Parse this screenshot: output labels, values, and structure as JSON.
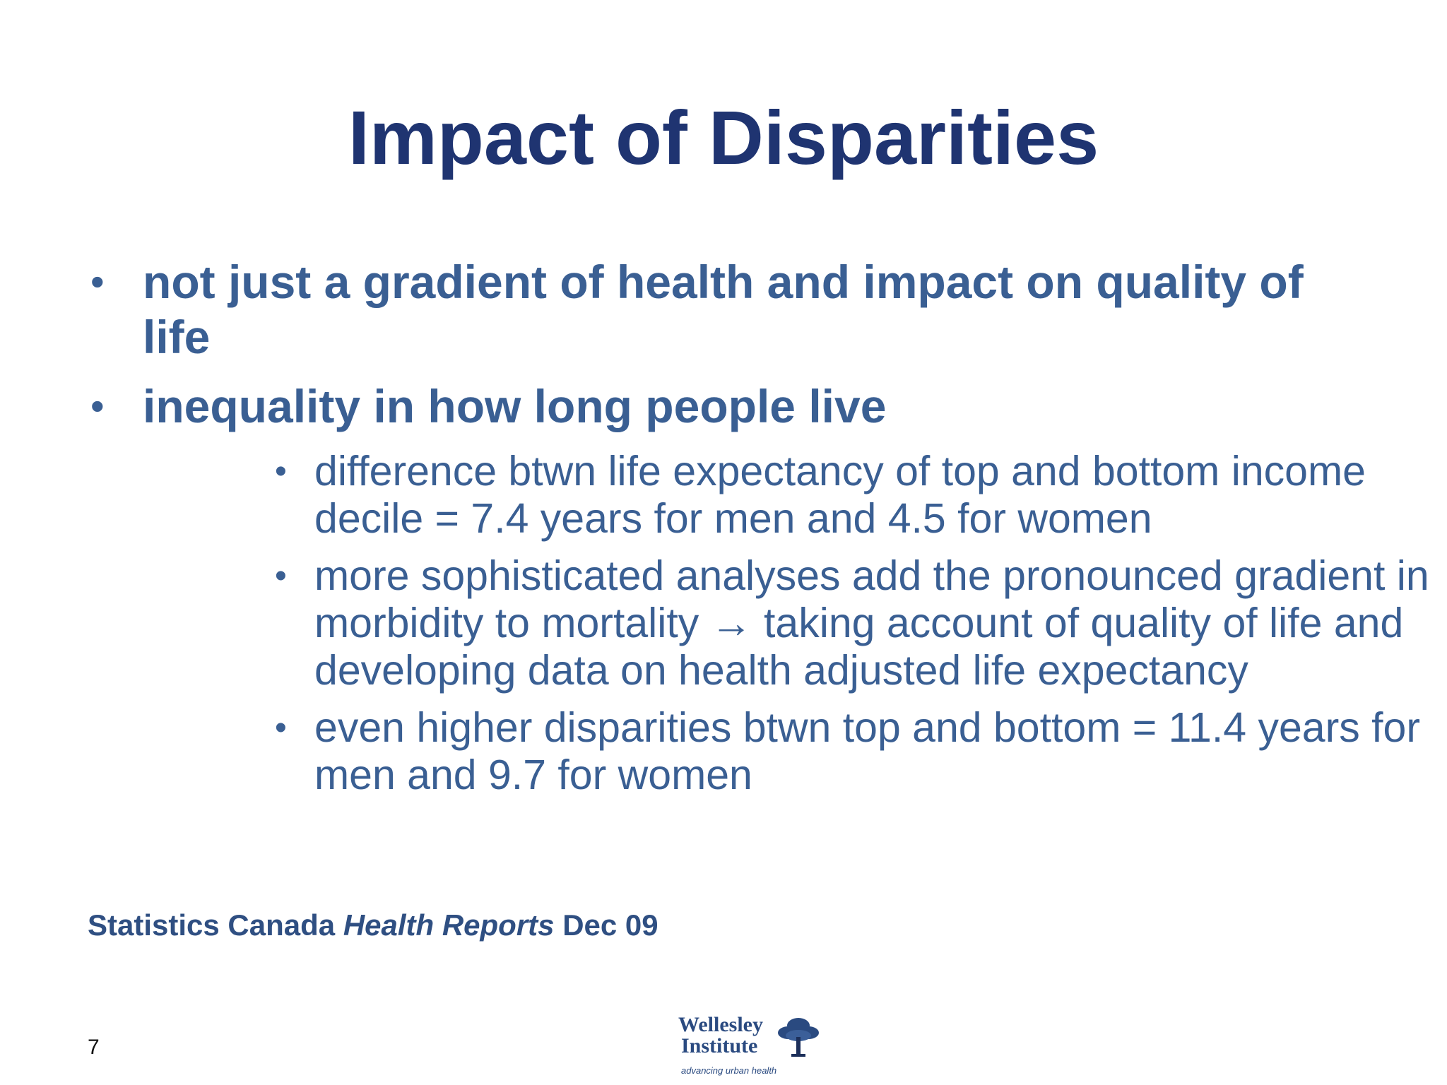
{
  "slide": {
    "title": "Impact of Disparities",
    "bullets": [
      {
        "text": "not just a gradient of health and impact on quality of life",
        "sub": []
      },
      {
        "text": "inequality in how long people live",
        "sub": [
          "difference btwn life expectancy of top and bottom income decile = 7.4 years for men and 4.5 for women",
          "more sophisticated analyses add the pronounced gradient in morbidity to mortality → taking account of quality of life and developing data on health adjusted life expectancy",
          "even higher disparities btwn top and bottom = 11.4 years for men and 9.7 for women"
        ]
      }
    ],
    "bullet_glyph": "•",
    "source": {
      "prefix": "Statistics Canada ",
      "italic": "Health Reports",
      "suffix": " Dec 09"
    },
    "page_number": "7",
    "logo": {
      "line1": "Wellesley",
      "line2": "Institute",
      "tagline": "advancing urban health",
      "icon": "tree-icon"
    },
    "colors": {
      "title": "#1f3471",
      "body": "#3a5f93",
      "logo": "#2a4a80"
    }
  }
}
